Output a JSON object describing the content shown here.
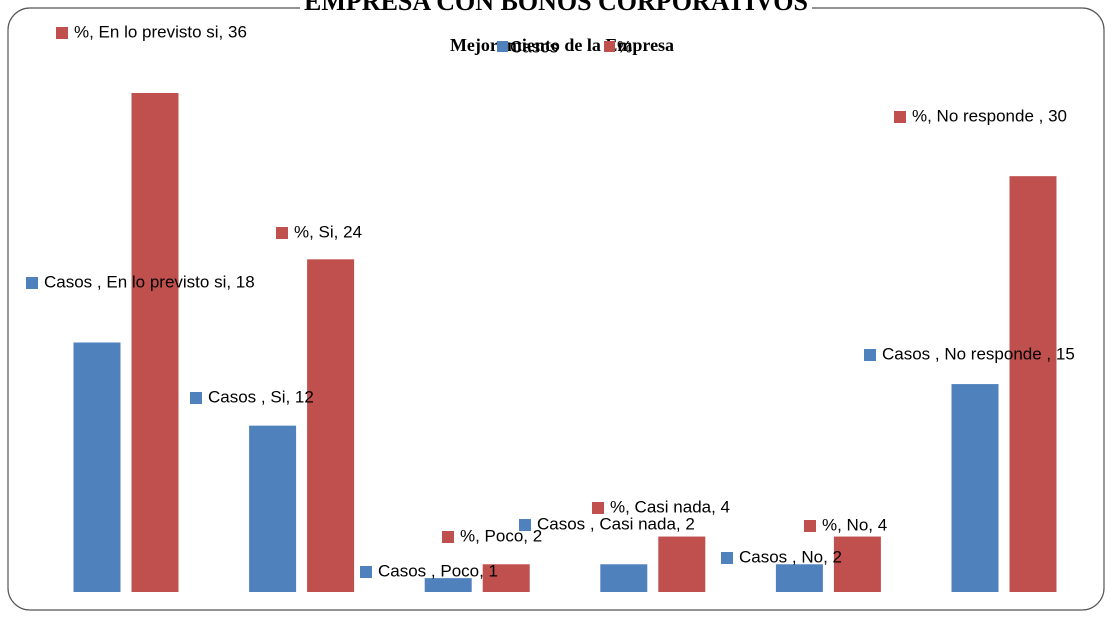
{
  "chart_data": {
    "type": "bar",
    "title": "EMPRESA CON BONOS CORPORATIVOS",
    "subtitle": "Mejoramiento de la Empresa",
    "categories": [
      "En lo previsto si",
      "Si",
      "Poco",
      "Casi nada",
      "No",
      "No responde"
    ],
    "series": [
      {
        "name": "Casos",
        "color": "#4f81bd",
        "values": [
          18,
          12,
          1,
          2,
          2,
          15
        ],
        "value_labels": [
          "Casos , En lo previsto si, 18",
          "Casos , Si, 12",
          "Casos , Poco, 1",
          "Casos , Casi nada, 2",
          "Casos , No, 2",
          "Casos , No responde , 15"
        ]
      },
      {
        "name": "%",
        "color": "#c0504d",
        "values": [
          36,
          24,
          2,
          4,
          4,
          30
        ],
        "value_labels": [
          "%, En lo previsto si, 36",
          "%, Si, 24",
          "%, Poco, 2",
          "%, Casi nada, 4",
          "%, No, 4",
          "%, No responde , 30"
        ]
      }
    ],
    "ylim": [
      0,
      36
    ]
  }
}
